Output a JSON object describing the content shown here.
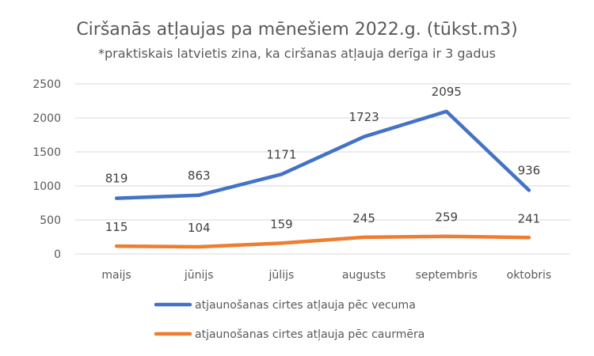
{
  "chart_data": {
    "type": "line",
    "title": "Ciršanās atļaujas pa mēnešiem 2022.g. (tūkst.m3)",
    "subtitle": "*praktiskais latvietis zina, ka ciršanas atļauja derīga ir 3 gadus",
    "categories": [
      "maijs",
      "jūnijs",
      "jūlijs",
      "augusts",
      "septembris",
      "oktobris"
    ],
    "y_ticks": [
      "0",
      "500",
      "1000",
      "1500",
      "2000",
      "2500"
    ],
    "ylim": [
      0,
      2500
    ],
    "grid": true,
    "legend_position": "bottom",
    "series": [
      {
        "name": "atjaunošanas cirtes atļauja pēc vecuma",
        "color": "#4472C4",
        "values": [
          819,
          863,
          1171,
          1723,
          2095,
          936
        ],
        "labels": [
          "819",
          "863",
          "1171",
          "1723",
          "2095",
          "936"
        ]
      },
      {
        "name": "atjaunošanas cirtes atļauja pēc caurmēra",
        "color": "#ED7D31",
        "values": [
          115,
          104,
          159,
          245,
          259,
          241
        ],
        "labels": [
          "115",
          "104",
          "159",
          "245",
          "259",
          "241"
        ]
      }
    ]
  }
}
